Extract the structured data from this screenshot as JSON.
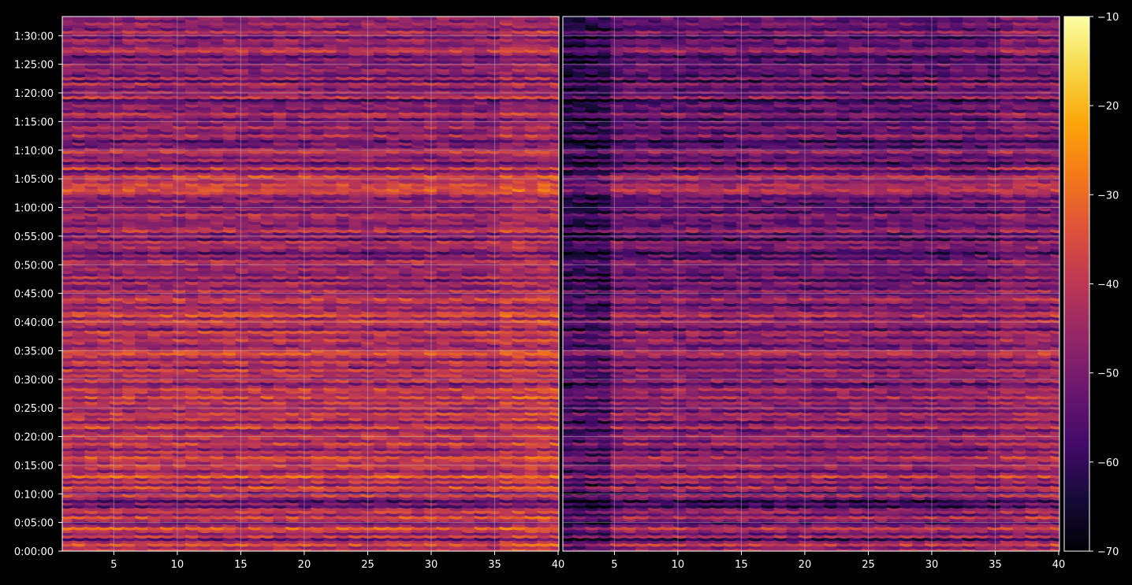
{
  "chart_data": {
    "type": "heatmap",
    "panels": [
      {
        "name": "",
        "x_ticks": [
          5,
          10,
          15,
          20,
          25,
          30,
          35,
          40
        ],
        "xlim": [
          1,
          40
        ]
      },
      {
        "name": "",
        "x_ticks": [
          5,
          10,
          15,
          20,
          25,
          30,
          35,
          40
        ],
        "xlim": [
          1,
          40
        ]
      }
    ],
    "y_ticks": [
      "0:00:00",
      "0:05:00",
      "0:10:00",
      "0:15:00",
      "0:20:00",
      "0:25:00",
      "0:30:00",
      "0:35:00",
      "0:40:00",
      "0:45:00",
      "0:50:00",
      "0:55:00",
      "1:00:00",
      "1:05:00",
      "1:10:00",
      "1:15:00",
      "1:20:00",
      "1:25:00",
      "1:30:00"
    ],
    "ylim_seconds": [
      0,
      5600
    ],
    "colorbar": {
      "min": -70,
      "max": -10,
      "ticks": [
        -10,
        -20,
        -30,
        -40,
        -50,
        -60,
        -70
      ],
      "colormap": "inferno"
    },
    "grid": true,
    "row_levels": {
      "description": "approximate mean level (dB) per time row, bottom to top, estimated from image",
      "left": [
        -38,
        -44,
        -34,
        -42,
        -55,
        -38,
        -48,
        -40,
        -32,
        -45,
        -52,
        -42,
        -34,
        -48,
        -38,
        -42,
        -56,
        -48,
        -58,
        -46,
        -36,
        -52,
        -40,
        -34,
        -50,
        -38,
        -44,
        -30,
        -42,
        -48,
        -40,
        -36,
        -44,
        -38,
        -34,
        -46,
        -40,
        -50,
        -42,
        -36,
        -46,
        -40,
        -38,
        -44,
        -48,
        -34,
        -42,
        -50,
        -38,
        -42,
        -36,
        -48,
        -40,
        -44,
        -38,
        -46,
        -34,
        -44,
        -40,
        -36,
        -46,
        -52,
        -38,
        -46,
        -40,
        -44,
        -36,
        -50,
        -42,
        -38,
        -48,
        -40,
        -34,
        -36,
        -44,
        -48,
        -42,
        -38,
        -46,
        -40,
        -36,
        -52,
        -44,
        -40,
        -36,
        -48,
        -34,
        -38,
        -46,
        -42,
        -50,
        -40,
        -36,
        -44,
        -48,
        -38,
        -50,
        -46,
        -42,
        -54,
        -40,
        -50,
        -46,
        -44,
        -48,
        -42,
        -40,
        -52,
        -46,
        -56,
        -48,
        -42,
        -46,
        -40,
        -56,
        -44,
        -52,
        -38,
        -44,
        -50,
        -46,
        -48,
        -44,
        -40,
        -52,
        -46,
        -48,
        -52,
        -44,
        -50,
        -46,
        -38,
        -34,
        -38,
        -36,
        -42,
        -40,
        -34,
        -46,
        -52,
        -36,
        -48,
        -56,
        -44,
        -50,
        -46,
        -38,
        -44,
        -52,
        -48,
        -56,
        -46,
        -40,
        -52,
        -48,
        -42,
        -50,
        -46,
        -54,
        -44,
        -40,
        -52,
        -48,
        -46,
        -50,
        -58,
        -38,
        -48,
        -44,
        -52,
        -46,
        -40,
        -56,
        -42,
        -54,
        -48,
        -46,
        -50,
        -44,
        -52,
        -48,
        -56,
        -46,
        -38,
        -42,
        -50,
        -48,
        -44,
        -54,
        -46,
        -40,
        -52,
        -48,
        -44,
        -50,
        -46
      ],
      "right": [
        -42,
        -50,
        -38,
        -48,
        -62,
        -42,
        -54,
        -46,
        -38,
        -50,
        -58,
        -48,
        -40,
        -54,
        -44,
        -48,
        -62,
        -54,
        -64,
        -52,
        -42,
        -58,
        -46,
        -40,
        -56,
        -44,
        -50,
        -36,
        -48,
        -54,
        -46,
        -42,
        -50,
        -44,
        -40,
        -52,
        -46,
        -56,
        -48,
        -42,
        -52,
        -46,
        -44,
        -50,
        -54,
        -40,
        -48,
        -56,
        -44,
        -48,
        -42,
        -54,
        -46,
        -50,
        -44,
        -52,
        -40,
        -50,
        -46,
        -42,
        -52,
        -58,
        -44,
        -52,
        -46,
        -50,
        -42,
        -56,
        -48,
        -44,
        -54,
        -46,
        -40,
        -42,
        -50,
        -54,
        -48,
        -44,
        -52,
        -46,
        -42,
        -58,
        -50,
        -46,
        -42,
        -54,
        -40,
        -44,
        -52,
        -48,
        -56,
        -46,
        -42,
        -50,
        -54,
        -44,
        -56,
        -52,
        -48,
        -60,
        -46,
        -56,
        -52,
        -50,
        -54,
        -48,
        -46,
        -58,
        -52,
        -62,
        -54,
        -48,
        -52,
        -46,
        -62,
        -50,
        -58,
        -44,
        -50,
        -56,
        -52,
        -54,
        -50,
        -46,
        -58,
        -52,
        -54,
        -58,
        -50,
        -56,
        -52,
        -44,
        -40,
        -44,
        -42,
        -48,
        -46,
        -40,
        -52,
        -58,
        -42,
        -54,
        -62,
        -50,
        -56,
        -52,
        -44,
        -50,
        -58,
        -54,
        -62,
        -52,
        -46,
        -58,
        -54,
        -48,
        -56,
        -52,
        -60,
        -50,
        -46,
        -58,
        -54,
        -52,
        -56,
        -64,
        -44,
        -54,
        -50,
        -58,
        -52,
        -46,
        -62,
        -48,
        -60,
        -54,
        -52,
        -56,
        -50,
        -58,
        -54,
        -62,
        -52,
        -44,
        -48,
        -56,
        -54,
        -50,
        -60,
        -52,
        -46,
        -58,
        -54,
        -50,
        -56,
        -52
      ]
    }
  },
  "colors": {
    "background": "#000000",
    "grid": "#bfbfbf",
    "axes": "#ffffff",
    "text": "#ffffff"
  }
}
